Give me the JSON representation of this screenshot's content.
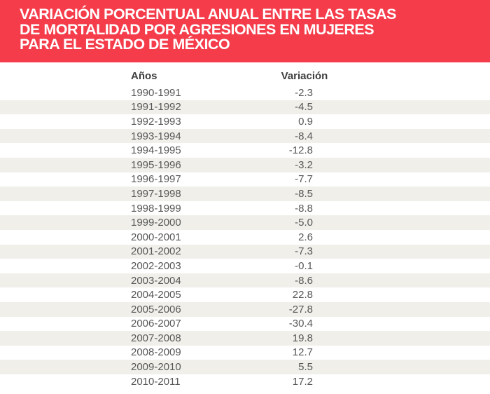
{
  "banner": {
    "title_lines": [
      "VARIACIÓN PORCENTUAL ANUAL ENTRE LAS TASAS",
      "DE MORTALIDAD POR AGRESIONES EN MUJERES",
      "PARA EL ESTADO DE MÉXICO"
    ],
    "background_color": "#f53c4b",
    "text_color": "#ffffff"
  },
  "table": {
    "columns": [
      "Años",
      "Variación"
    ],
    "stripe_color": "#f0efea",
    "text_color": "#575757",
    "header_text_color": "#3d3d3d",
    "rows": [
      {
        "years": "1990-1991",
        "variation": "-2.3"
      },
      {
        "years": "1991-1992",
        "variation": "-4.5"
      },
      {
        "years": "1992-1993",
        "variation": "0.9"
      },
      {
        "years": "1993-1994",
        "variation": "-8.4"
      },
      {
        "years": "1994-1995",
        "variation": "-12.8"
      },
      {
        "years": "1995-1996",
        "variation": "-3.2"
      },
      {
        "years": "1996-1997",
        "variation": "-7.7"
      },
      {
        "years": "1997-1998",
        "variation": "-8.5"
      },
      {
        "years": "1998-1999",
        "variation": "-8.8"
      },
      {
        "years": "1999-2000",
        "variation": "-5.0"
      },
      {
        "years": "2000-2001",
        "variation": "2.6"
      },
      {
        "years": "2001-2002",
        "variation": "-7.3"
      },
      {
        "years": "2002-2003",
        "variation": "-0.1"
      },
      {
        "years": "2003-2004",
        "variation": "-8.6"
      },
      {
        "years": "2004-2005",
        "variation": "22.8"
      },
      {
        "years": "2005-2006",
        "variation": "-27.8"
      },
      {
        "years": "2006-2007",
        "variation": "-30.4"
      },
      {
        "years": "2007-2008",
        "variation": "19.8"
      },
      {
        "years": "2008-2009",
        "variation": "12.7"
      },
      {
        "years": "2009-2010",
        "variation": "5.5"
      },
      {
        "years": "2010-2011",
        "variation": "17.2"
      }
    ]
  },
  "chart_data": {
    "type": "table",
    "title": "VARIACIÓN PORCENTUAL ANUAL ENTRE LAS TASAS DE MORTALIDAD POR AGRESIONES EN MUJERES PARA EL ESTADO DE MÉXICO",
    "columns": [
      "Años",
      "Variación"
    ],
    "categories": [
      "1990-1991",
      "1991-1992",
      "1992-1993",
      "1993-1994",
      "1994-1995",
      "1995-1996",
      "1996-1997",
      "1997-1998",
      "1998-1999",
      "1999-2000",
      "2000-2001",
      "2001-2002",
      "2002-2003",
      "2003-2004",
      "2004-2005",
      "2005-2006",
      "2006-2007",
      "2007-2008",
      "2008-2009",
      "2009-2010",
      "2010-2011"
    ],
    "values": [
      -2.3,
      -4.5,
      0.9,
      -8.4,
      -12.8,
      -3.2,
      -7.7,
      -8.5,
      -8.8,
      -5.0,
      2.6,
      -7.3,
      -0.1,
      -8.6,
      22.8,
      -27.8,
      -30.4,
      19.8,
      12.7,
      5.5,
      17.2
    ]
  }
}
